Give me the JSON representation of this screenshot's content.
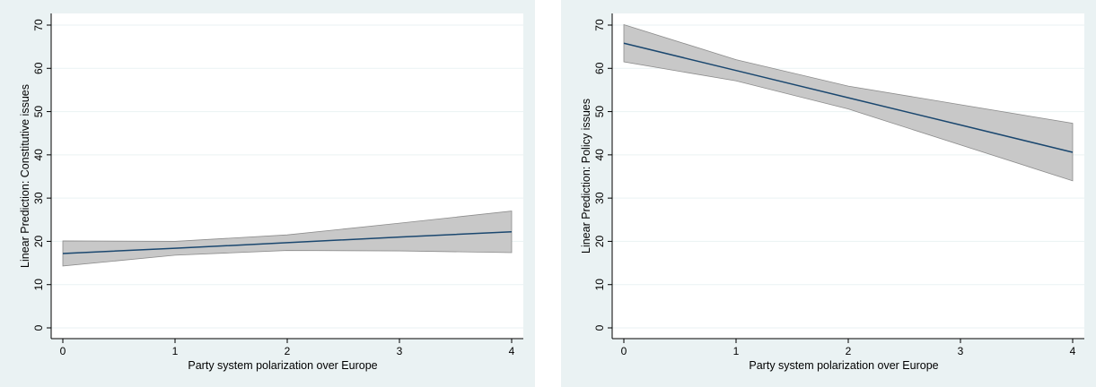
{
  "colors": {
    "panel_bg": "#eaf2f3",
    "plot_bg": "#ffffff",
    "grid": "#eaf2f3",
    "line": "#1a476f",
    "ci_fill": "#c8c8c8",
    "ci_stroke": "#8c8c8c"
  },
  "chart_data": [
    {
      "type": "line",
      "xlabel": "Party system polarization over Europe",
      "ylabel": "Linear Prediction: Constitutive issues",
      "xlim": [
        0,
        4
      ],
      "ylim": [
        0,
        70
      ],
      "xticks": [
        0,
        1,
        2,
        3,
        4
      ],
      "yticks": [
        0,
        10,
        20,
        30,
        40,
        50,
        60,
        70
      ],
      "grid": true,
      "series": [
        {
          "x": [
            0,
            1,
            2,
            3,
            4
          ],
          "values": [
            17.2,
            18.4,
            19.7,
            21.0,
            22.2
          ],
          "ci_lower": [
            14.3,
            16.8,
            17.9,
            17.8,
            17.4
          ],
          "ci_upper": [
            20.1,
            20.0,
            21.5,
            24.2,
            27.0
          ]
        }
      ]
    },
    {
      "type": "line",
      "xlabel": "Party system polarization over Europe",
      "ylabel": "Linear Prediction: Policy issues",
      "xlim": [
        0,
        4
      ],
      "ylim": [
        0,
        70
      ],
      "xticks": [
        0,
        1,
        2,
        3,
        4
      ],
      "yticks": [
        0,
        10,
        20,
        30,
        40,
        50,
        60,
        70
      ],
      "grid": true,
      "series": [
        {
          "x": [
            0,
            1,
            2,
            3,
            4
          ],
          "values": [
            65.8,
            59.5,
            53.2,
            46.9,
            40.6
          ],
          "ci_lower": [
            61.5,
            57.1,
            50.6,
            42.3,
            34.0
          ],
          "ci_upper": [
            70.1,
            62.0,
            55.9,
            51.6,
            47.3
          ]
        }
      ]
    }
  ]
}
